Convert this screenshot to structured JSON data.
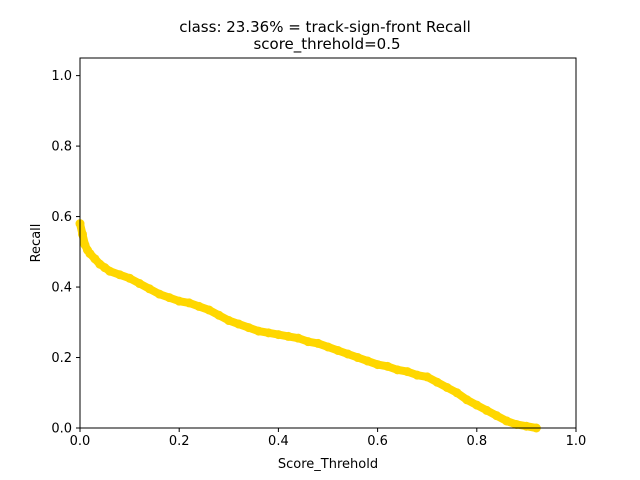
{
  "chart_data": {
    "type": "scatter",
    "title": "class: 23.36% = track-sign-front Recall",
    "subtitle": "score_threhold=0.5",
    "xlabel": "Score_Threhold",
    "ylabel": "Recall",
    "xlim": [
      0.0,
      1.0
    ],
    "ylim": [
      0.0,
      1.05
    ],
    "grid": false,
    "legend": "none",
    "xticks": [
      {
        "value": 0.0,
        "label": "0.0"
      },
      {
        "value": 0.2,
        "label": "0.2"
      },
      {
        "value": 0.4,
        "label": "0.4"
      },
      {
        "value": 0.6,
        "label": "0.6"
      },
      {
        "value": 0.8,
        "label": "0.8"
      },
      {
        "value": 1.0,
        "label": "1.0"
      }
    ],
    "yticks": [
      {
        "value": 0.0,
        "label": "0.0"
      },
      {
        "value": 0.2,
        "label": "0.2"
      },
      {
        "value": 0.4,
        "label": "0.4"
      },
      {
        "value": 0.6,
        "label": "0.6"
      },
      {
        "value": 0.8,
        "label": "0.8"
      },
      {
        "value": 1.0,
        "label": "1.0"
      }
    ],
    "series": [
      {
        "color": "#ffd700",
        "x": [
          0.0,
          0.005,
          0.01,
          0.015,
          0.02,
          0.03,
          0.04,
          0.05,
          0.06,
          0.08,
          0.1,
          0.12,
          0.14,
          0.16,
          0.18,
          0.2,
          0.22,
          0.24,
          0.26,
          0.28,
          0.3,
          0.32,
          0.34,
          0.36,
          0.38,
          0.4,
          0.42,
          0.44,
          0.46,
          0.48,
          0.5,
          0.52,
          0.54,
          0.56,
          0.58,
          0.6,
          0.62,
          0.64,
          0.66,
          0.68,
          0.7,
          0.72,
          0.74,
          0.76,
          0.78,
          0.8,
          0.82,
          0.84,
          0.86,
          0.88,
          0.9,
          0.92
        ],
        "y": [
          0.58,
          0.55,
          0.52,
          0.505,
          0.495,
          0.48,
          0.465,
          0.455,
          0.445,
          0.435,
          0.425,
          0.41,
          0.395,
          0.38,
          0.37,
          0.36,
          0.355,
          0.345,
          0.335,
          0.32,
          0.305,
          0.295,
          0.285,
          0.275,
          0.27,
          0.265,
          0.26,
          0.255,
          0.245,
          0.24,
          0.23,
          0.22,
          0.21,
          0.2,
          0.19,
          0.18,
          0.175,
          0.165,
          0.16,
          0.15,
          0.145,
          0.13,
          0.115,
          0.1,
          0.08,
          0.065,
          0.05,
          0.035,
          0.02,
          0.01,
          0.005,
          0.0
        ]
      }
    ]
  }
}
